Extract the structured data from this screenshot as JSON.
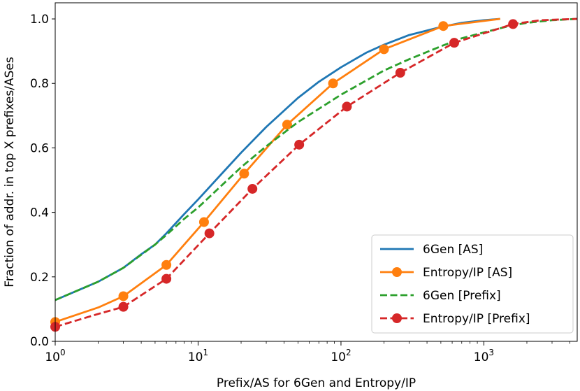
{
  "chart_data": {
    "type": "line",
    "xscale": "log",
    "xlim": [
      1,
      4500
    ],
    "ylim": [
      0,
      1.05
    ],
    "xlabel": "Prefix/AS for 6Gen and Entropy/IP",
    "ylabel": "Fraction of addr. in top X prefixes/ASes",
    "xticks": [
      {
        "value": 1,
        "base": "10",
        "exp": "0"
      },
      {
        "value": 10,
        "base": "10",
        "exp": "1"
      },
      {
        "value": 100,
        "base": "10",
        "exp": "2"
      },
      {
        "value": 1000,
        "base": "10",
        "exp": "3"
      }
    ],
    "yticks": [
      {
        "value": 0.0,
        "label": "0.0"
      },
      {
        "value": 0.2,
        "label": "0.2"
      },
      {
        "value": 0.4,
        "label": "0.4"
      },
      {
        "value": 0.6,
        "label": "0.6"
      },
      {
        "value": 0.8,
        "label": "0.8"
      },
      {
        "value": 1.0,
        "label": "1.0"
      }
    ],
    "legend_position": "lower-right",
    "series": [
      {
        "name": "6Gen [AS]",
        "color": "#1f77b4",
        "style": "solid",
        "marker": "none",
        "x": [
          1,
          2,
          3,
          4,
          5,
          6,
          8,
          10,
          15,
          20,
          30,
          50,
          70,
          100,
          150,
          200,
          300,
          500,
          700,
          1000,
          1300
        ],
        "y": [
          0.128,
          0.185,
          0.228,
          0.27,
          0.3,
          0.335,
          0.395,
          0.44,
          0.525,
          0.585,
          0.665,
          0.755,
          0.805,
          0.85,
          0.895,
          0.92,
          0.95,
          0.975,
          0.988,
          0.996,
          1.0
        ]
      },
      {
        "name": "Entropy/IP [AS]",
        "color": "#ff7f0e",
        "style": "solid",
        "marker": "circle",
        "x": [
          1,
          2,
          3,
          6,
          11,
          21,
          42,
          88,
          200,
          520,
          1300
        ],
        "y": [
          0.06,
          0.105,
          0.14,
          0.237,
          0.37,
          0.52,
          0.672,
          0.8,
          0.906,
          0.978,
          1.0
        ],
        "markers_x": [
          1,
          3,
          6,
          11,
          21,
          42,
          88,
          200,
          520
        ],
        "markers_y": [
          0.06,
          0.14,
          0.237,
          0.37,
          0.52,
          0.672,
          0.8,
          0.906,
          0.978
        ]
      },
      {
        "name": "6Gen [Prefix]",
        "color": "#2ca02c",
        "style": "dashed",
        "marker": "none",
        "x": [
          1,
          2,
          3,
          5,
          6,
          8,
          10,
          20,
          30,
          50,
          100,
          200,
          300,
          500,
          700,
          1000,
          1500,
          2000,
          3000,
          4500
        ],
        "y": [
          0.128,
          0.185,
          0.228,
          0.3,
          0.33,
          0.38,
          0.415,
          0.54,
          0.605,
          0.68,
          0.765,
          0.84,
          0.875,
          0.915,
          0.94,
          0.958,
          0.978,
          0.988,
          0.996,
          1.0
        ]
      },
      {
        "name": "Entropy/IP [Prefix]",
        "color": "#d62728",
        "style": "dashed",
        "marker": "circle",
        "x": [
          1,
          2,
          3,
          6,
          12,
          24,
          51,
          110,
          260,
          620,
          1600,
          2500,
          4500
        ],
        "y": [
          0.045,
          0.085,
          0.107,
          0.194,
          0.335,
          0.473,
          0.61,
          0.728,
          0.833,
          0.926,
          0.984,
          0.996,
          1.0
        ],
        "markers_x": [
          1,
          3,
          6,
          12,
          24,
          51,
          110,
          260,
          620,
          1600
        ],
        "markers_y": [
          0.045,
          0.107,
          0.194,
          0.335,
          0.473,
          0.61,
          0.728,
          0.833,
          0.926,
          0.984
        ]
      }
    ]
  }
}
